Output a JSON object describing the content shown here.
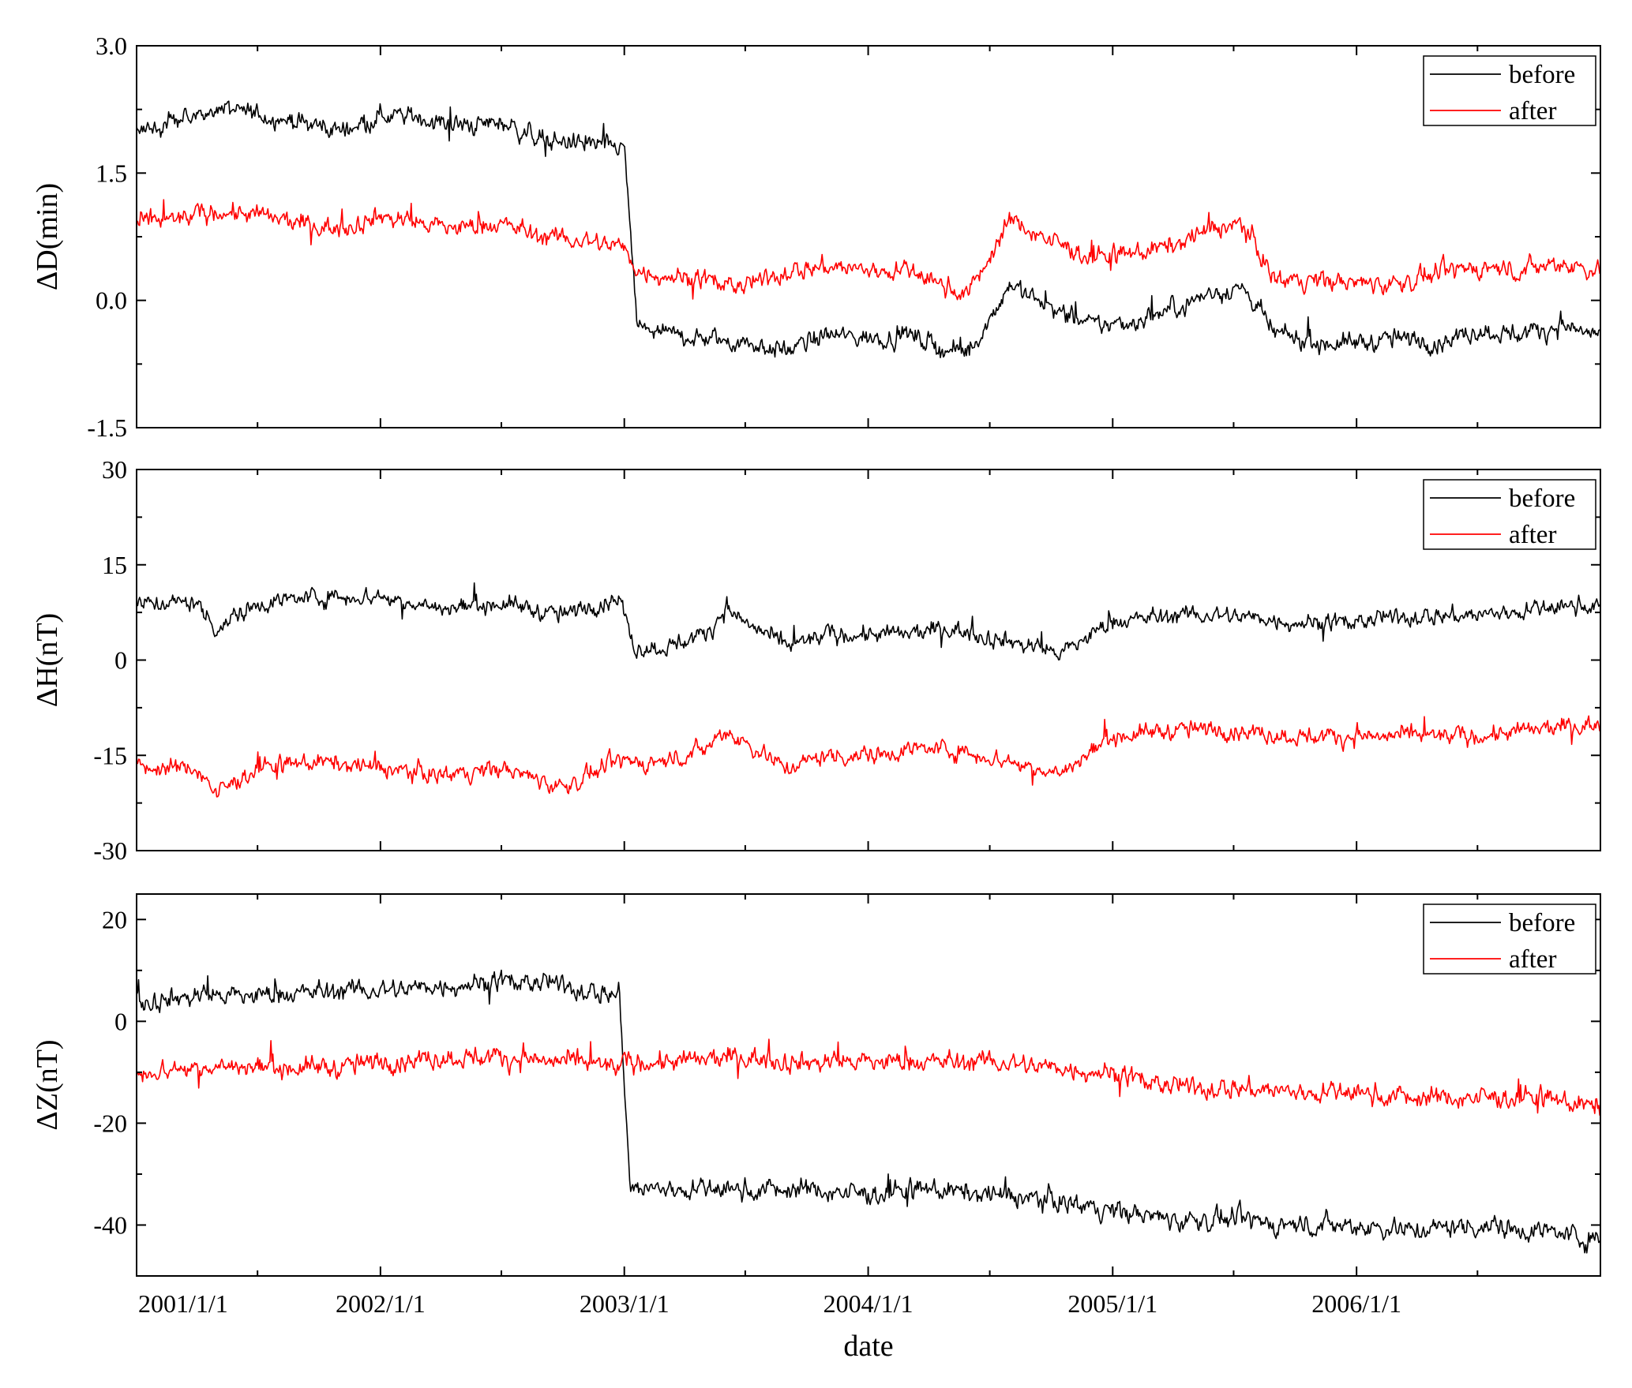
{
  "chart_data": [
    {
      "type": "line",
      "ylabel": "ΔD(min)",
      "ylim": [
        -1.5,
        3.0
      ],
      "yticks": [
        "3.0",
        "1.5",
        "0.0",
        "-1.5"
      ],
      "ytick_values": [
        3.0,
        1.5,
        0.0,
        -1.5
      ],
      "xlim": [
        "2001/1/1",
        "2007/1/1"
      ],
      "grid": false,
      "legend": "top-right",
      "series": [
        {
          "name": "before",
          "color": "#000000",
          "noise": 0.09,
          "x": [
            "2001/1/1",
            "2001/3/1",
            "2001/5/1",
            "2001/7/1",
            "2001/9/1",
            "2001/11/1",
            "2002/1/1",
            "2002/3/1",
            "2002/5/1",
            "2002/7/1",
            "2002/9/1",
            "2002/12/25",
            "2003/1/1",
            "2003/1/20",
            "2003/3/1",
            "2003/5/1",
            "2003/7/1",
            "2003/9/1",
            "2003/11/1",
            "2004/1/1",
            "2004/3/1",
            "2004/5/1",
            "2004/6/1",
            "2004/8/1",
            "2004/10/1",
            "2004/12/1",
            "2005/2/1",
            "2005/4/1",
            "2005/6/1",
            "2005/7/15",
            "2005/9/1",
            "2005/11/1",
            "2006/1/1",
            "2006/3/1",
            "2006/5/1",
            "2006/7/1",
            "2006/9/1",
            "2006/11/1",
            "2006/12/31"
          ],
          "y": [
            2.0,
            2.1,
            2.25,
            2.2,
            2.1,
            2.0,
            2.2,
            2.15,
            2.05,
            2.1,
            1.9,
            1.8,
            1.8,
            -0.3,
            -0.4,
            -0.45,
            -0.5,
            -0.6,
            -0.4,
            -0.45,
            -0.4,
            -0.6,
            -0.6,
            0.2,
            -0.1,
            -0.3,
            -0.25,
            -0.1,
            0.1,
            0.15,
            -0.4,
            -0.5,
            -0.5,
            -0.45,
            -0.5,
            -0.35,
            -0.4,
            -0.3,
            -0.4
          ]
        },
        {
          "name": "after",
          "color": "#ff0000",
          "noise": 0.09,
          "x": [
            "2001/1/1",
            "2001/3/1",
            "2001/5/1",
            "2001/7/1",
            "2001/9/1",
            "2001/11/1",
            "2002/1/1",
            "2002/3/1",
            "2002/5/1",
            "2002/7/1",
            "2002/9/1",
            "2002/12/25",
            "2003/1/1",
            "2003/1/20",
            "2003/3/1",
            "2003/5/1",
            "2003/7/1",
            "2003/9/1",
            "2003/11/1",
            "2004/1/1",
            "2004/3/1",
            "2004/5/1",
            "2004/6/1",
            "2004/8/1",
            "2004/10/1",
            "2004/12/1",
            "2005/2/1",
            "2005/4/1",
            "2005/6/1",
            "2005/7/15",
            "2005/9/1",
            "2005/11/1",
            "2006/1/1",
            "2006/3/1",
            "2006/5/1",
            "2006/7/1",
            "2006/9/1",
            "2006/11/1",
            "2006/12/31"
          ],
          "y": [
            0.9,
            0.95,
            1.05,
            1.0,
            0.9,
            0.85,
            1.0,
            0.9,
            0.85,
            0.9,
            0.75,
            0.65,
            0.6,
            0.35,
            0.3,
            0.25,
            0.15,
            0.35,
            0.4,
            0.35,
            0.35,
            0.15,
            0.1,
            0.95,
            0.7,
            0.5,
            0.55,
            0.65,
            0.85,
            0.9,
            0.25,
            0.25,
            0.2,
            0.2,
            0.3,
            0.4,
            0.35,
            0.45,
            0.35
          ]
        }
      ]
    },
    {
      "type": "line",
      "ylabel": "ΔH(nT)",
      "ylim": [
        -30,
        30
      ],
      "yticks": [
        "30",
        "15",
        "0",
        "-15",
        "-30"
      ],
      "ytick_values": [
        30,
        15,
        0,
        -15,
        -30
      ],
      "xlim": [
        "2001/1/1",
        "2007/1/1"
      ],
      "grid": false,
      "legend": "top-right",
      "series": [
        {
          "name": "before",
          "color": "#000000",
          "noise": 1.1,
          "x": [
            "2001/1/1",
            "2001/4/1",
            "2001/5/1",
            "2001/7/1",
            "2001/10/1",
            "2002/1/1",
            "2002/4/1",
            "2002/7/1",
            "2002/10/1",
            "2002/12/25",
            "2003/1/15",
            "2003/3/1",
            "2003/5/1",
            "2003/6/1",
            "2003/9/1",
            "2003/11/1",
            "2004/1/1",
            "2004/3/1",
            "2004/5/1",
            "2004/8/1",
            "2004/10/15",
            "2005/1/1",
            "2005/4/1",
            "2005/7/1",
            "2005/10/1",
            "2006/1/1",
            "2006/4/1",
            "2006/7/1",
            "2006/10/1",
            "2006/12/31"
          ],
          "y": [
            9,
            9,
            5,
            9,
            10,
            10,
            8,
            9,
            7,
            10,
            2,
            2,
            4,
            8,
            2,
            4,
            4,
            4,
            5,
            3,
            1,
            6,
            7,
            7,
            6,
            6,
            7,
            7,
            8,
            9
          ]
        },
        {
          "name": "after",
          "color": "#ff0000",
          "noise": 1.1,
          "x": [
            "2001/1/1",
            "2001/4/1",
            "2001/5/1",
            "2001/7/1",
            "2001/10/1",
            "2002/1/1",
            "2002/4/1",
            "2002/7/1",
            "2002/10/1",
            "2002/12/25",
            "2003/1/15",
            "2003/3/1",
            "2003/5/1",
            "2003/6/1",
            "2003/9/1",
            "2003/11/1",
            "2004/1/1",
            "2004/3/1",
            "2004/5/1",
            "2004/8/1",
            "2004/10/15",
            "2005/1/1",
            "2005/4/1",
            "2005/7/1",
            "2005/10/1",
            "2006/1/1",
            "2006/4/1",
            "2006/7/1",
            "2006/10/1",
            "2006/12/31"
          ],
          "y": [
            -17,
            -17,
            -21,
            -17,
            -16,
            -17,
            -18,
            -17,
            -20,
            -16,
            -16,
            -16,
            -14,
            -11,
            -17,
            -15,
            -15,
            -14,
            -14,
            -16,
            -18,
            -12,
            -11,
            -11,
            -12,
            -12,
            -12,
            -12,
            -11,
            -10
          ]
        }
      ]
    },
    {
      "type": "line",
      "ylabel": "ΔZ(nT)",
      "ylim": [
        -50,
        25
      ],
      "yticks": [
        "20",
        "0",
        "-20",
        "-40"
      ],
      "ytick_values": [
        20,
        0,
        -20,
        -40
      ],
      "xticks": [
        "2001/1/1",
        "2002/1/1",
        "2003/1/1",
        "2004/1/1",
        "2005/1/1",
        "2006/1/1"
      ],
      "xlabel": "date",
      "xlim": [
        "2001/1/1",
        "2007/1/1"
      ],
      "grid": false,
      "legend": "top-right",
      "series": [
        {
          "name": "before",
          "color": "#000000",
          "noise": 1.6,
          "x": [
            "2001/1/1",
            "2001/4/1",
            "2001/7/1",
            "2001/11/1",
            "2002/1/1",
            "2002/4/1",
            "2002/7/1",
            "2002/10/1",
            "2002/12/25",
            "2003/1/10",
            "2003/4/1",
            "2003/7/1",
            "2003/10/1",
            "2004/1/1",
            "2004/4/1",
            "2004/7/1",
            "2004/10/1",
            "2005/1/1",
            "2005/4/1",
            "2005/7/1",
            "2005/10/1",
            "2006/1/1",
            "2006/4/1",
            "2006/7/1",
            "2006/10/1",
            "2006/12/31"
          ],
          "y": [
            4,
            5,
            5,
            6,
            6,
            7,
            8,
            7,
            5,
            -33,
            -33,
            -33,
            -33,
            -34,
            -33,
            -34,
            -35,
            -37,
            -39,
            -39,
            -40,
            -40,
            -41,
            -40,
            -41,
            -43
          ]
        },
        {
          "name": "after",
          "color": "#ff0000",
          "noise": 1.6,
          "x": [
            "2001/1/1",
            "2001/4/1",
            "2001/7/1",
            "2001/11/1",
            "2002/1/1",
            "2002/4/1",
            "2002/7/1",
            "2002/10/1",
            "2002/12/25",
            "2003/1/10",
            "2003/4/1",
            "2003/7/1",
            "2003/10/1",
            "2004/1/1",
            "2004/4/1",
            "2004/7/1",
            "2004/10/1",
            "2005/1/1",
            "2005/4/1",
            "2005/7/1",
            "2005/10/1",
            "2006/1/1",
            "2006/4/1",
            "2006/7/1",
            "2006/10/1",
            "2006/12/31"
          ],
          "y": [
            -10,
            -9,
            -9,
            -9,
            -8,
            -7,
            -7,
            -8,
            -9,
            -8,
            -8,
            -7,
            -8,
            -8,
            -8,
            -8,
            -9,
            -10,
            -13,
            -13,
            -14,
            -14,
            -15,
            -15,
            -15,
            -17
          ]
        }
      ]
    }
  ]
}
